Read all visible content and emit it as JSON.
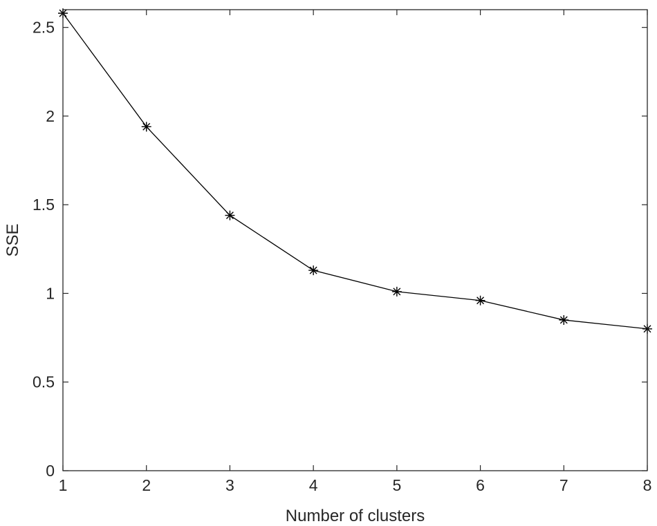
{
  "chart_data": {
    "type": "line",
    "xlabel": "Number of clusters",
    "ylabel": "SSE",
    "xlim": [
      1,
      8
    ],
    "ylim": [
      0,
      2.6
    ],
    "xticks": [
      1,
      2,
      3,
      4,
      5,
      6,
      7,
      8
    ],
    "yticks": [
      0,
      0.5,
      1,
      1.5,
      2,
      2.5
    ],
    "ytick_labels": [
      "0",
      "0.5",
      "1",
      "1.5",
      "2",
      "2.5"
    ],
    "grid": false,
    "box": true,
    "series": [
      {
        "marker": "asterisk",
        "color": "#000000",
        "x": [
          1,
          2,
          3,
          4,
          5,
          6,
          7,
          8
        ],
        "y": [
          2.58,
          1.94,
          1.44,
          1.13,
          1.01,
          0.96,
          0.85,
          0.8
        ]
      }
    ]
  }
}
